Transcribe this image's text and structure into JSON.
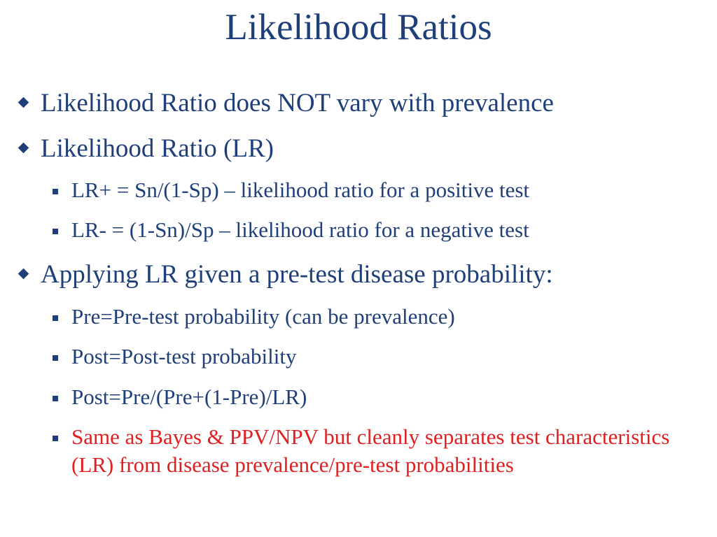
{
  "slide": {
    "title": "Likelihood Ratios",
    "colors": {
      "text": "#1f3f7a",
      "highlight": "#e02020",
      "background": "#ffffff"
    },
    "bullets": [
      {
        "level": 1,
        "text": "Likelihood Ratio does NOT vary with prevalence"
      },
      {
        "level": 1,
        "text": "Likelihood Ratio (LR)"
      },
      {
        "level": 2,
        "text": "LR+ = Sn/(1-Sp) – likelihood ratio for a positive test"
      },
      {
        "level": 2,
        "text": "LR-  = (1-Sn)/Sp – likelihood ratio for a negative test"
      },
      {
        "level": 1,
        "text": "Applying LR given a pre-test disease probability:"
      },
      {
        "level": 2,
        "text": "Pre=Pre-test probability (can be prevalence)"
      },
      {
        "level": 2,
        "text": "Post=Post-test probability"
      },
      {
        "level": 2,
        "text": "Post=Pre/(Pre+(1-Pre)/LR)"
      },
      {
        "level": 2,
        "text": "Same as Bayes & PPV/NPV but cleanly separates test characteristics (LR) from disease prevalence/pre-test probabilities",
        "highlight": true
      }
    ]
  }
}
